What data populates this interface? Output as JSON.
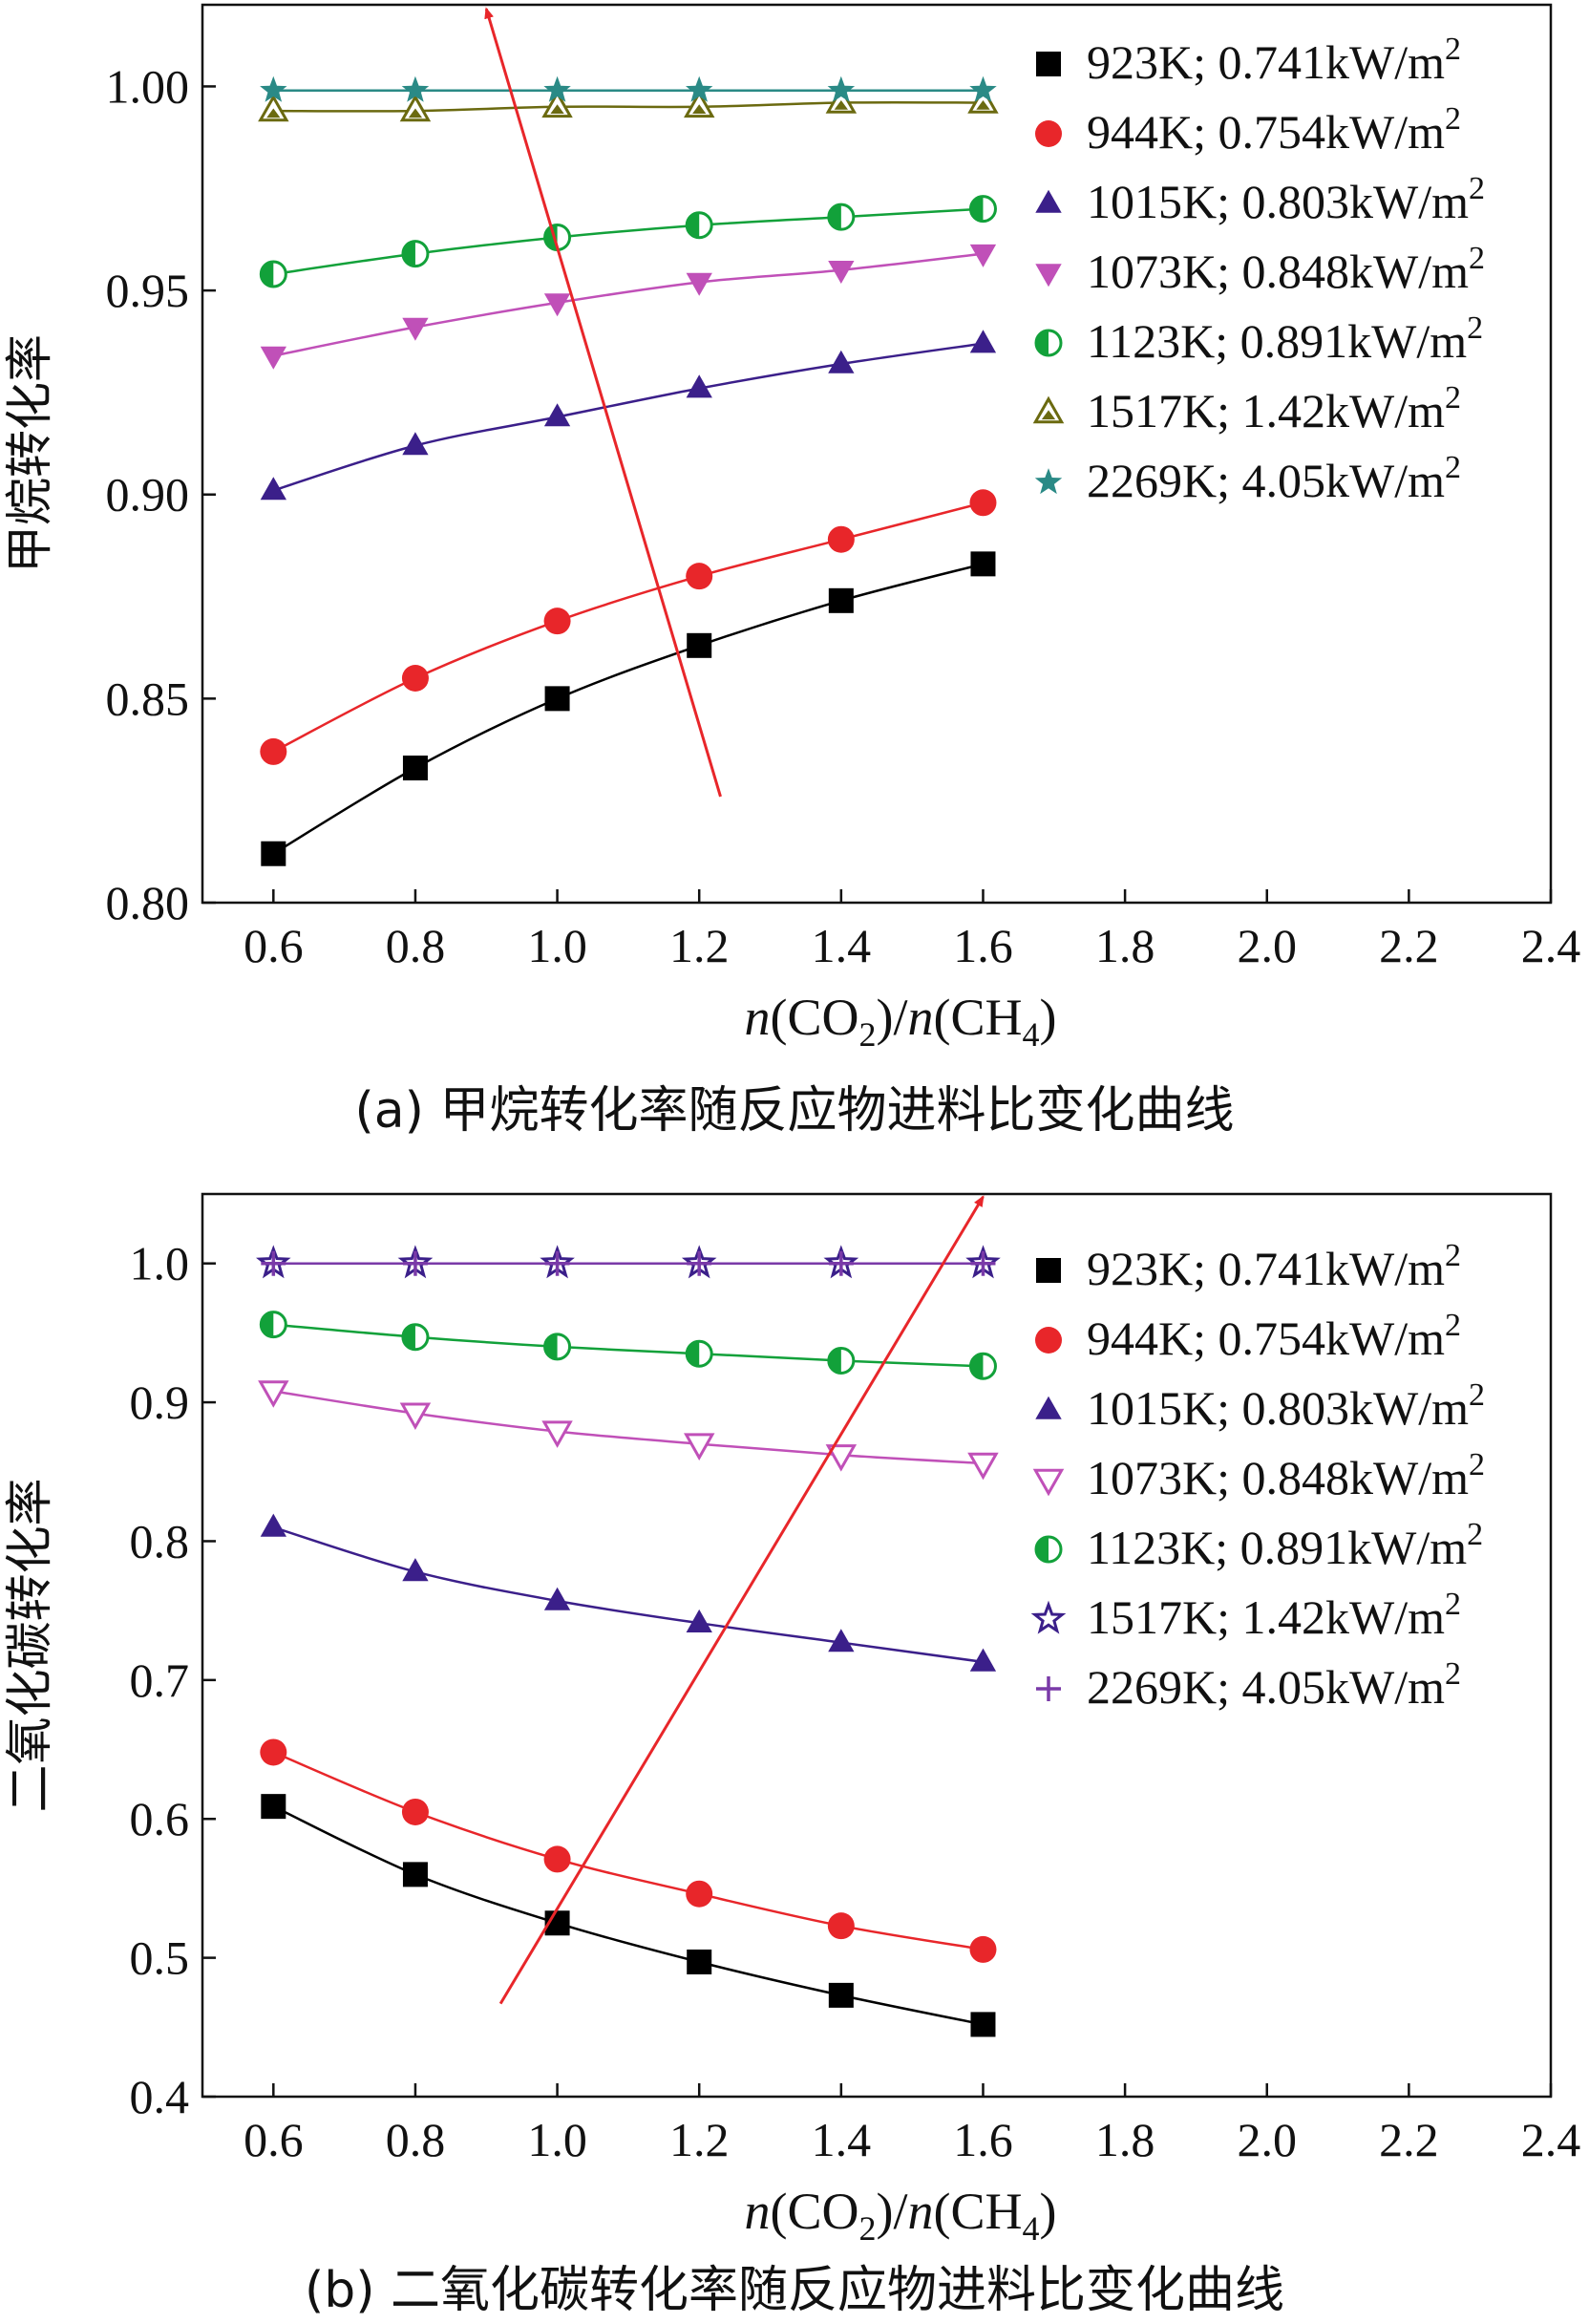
{
  "figure": {
    "caption_a": "(a) 甲烷转化率随反应物进料比变化曲线",
    "caption_b": "(b) 二氧化碳转化率随反应物进料比变化曲线"
  },
  "series_styles": [
    {
      "name": "923K; 0.741kW/m2",
      "label_main": "923K; 0.741kW/m",
      "label_sup": "2",
      "marker": "square",
      "color": "#000000",
      "line_color": "#000000"
    },
    {
      "name": "944K; 0.754kW/m2",
      "label_main": "944K; 0.754kW/m",
      "label_sup": "2",
      "marker": "circle",
      "color": "#e8262a",
      "line_color": "#e8262a"
    },
    {
      "name": "1015K; 0.803kW/m2",
      "label_main": "1015K; 0.803kW/m",
      "label_sup": "2",
      "marker": "triangle-up",
      "color": "#3b1f8a",
      "line_color": "#3b1f8a"
    },
    {
      "name": "1073K; 0.848kW/m2",
      "label_main": "1073K; 0.848kW/m",
      "label_sup": "2",
      "marker": "triangle-down",
      "color": "#c050b8",
      "line_color": "#c050b8"
    },
    {
      "name": "1123K; 0.891kW/m2",
      "label_main": "1123K; 0.891kW/m",
      "label_sup": "2",
      "marker": "half-circle",
      "color": "#12a13a",
      "line_color": "#12a13a"
    },
    {
      "name": "1517K; 1.42kW/m2",
      "label_main": "1517K; 1.42kW/m",
      "label_sup": "2",
      "marker": "half-triangle",
      "color": "#6b6a10",
      "line_color": "#6b6a10"
    },
    {
      "name": "2269K; 4.05kW/m2",
      "label_main": "2269K; 4.05kW/m",
      "label_sup": "2",
      "marker": "star",
      "color": "#2a8a86",
      "line_color": "#2a8a86"
    }
  ],
  "chart_data": [
    {
      "type": "line",
      "title": "",
      "xlabel": "n(CO2)/n(CH4)",
      "ylabel": "甲烷转化率",
      "xlim": [
        0.5,
        2.4
      ],
      "ylim": [
        0.8,
        1.02
      ],
      "xticks": [
        "0.6",
        "0.8",
        "1.0",
        "1.2",
        "1.4",
        "1.6",
        "1.8",
        "2.0",
        "2.2",
        "2.4"
      ],
      "yticks": [
        "0.80",
        "0.85",
        "0.90",
        "0.95",
        "1.00"
      ],
      "x": [
        0.6,
        0.8,
        1.0,
        1.2,
        1.4,
        1.6
      ],
      "legend_position": "top-right",
      "series": [
        {
          "name": "923K; 0.741kW/m2",
          "values": [
            0.812,
            0.833,
            0.85,
            0.863,
            0.874,
            0.883
          ]
        },
        {
          "name": "944K; 0.754kW/m2",
          "values": [
            0.837,
            0.855,
            0.869,
            0.88,
            0.889,
            0.898
          ]
        },
        {
          "name": "1015K; 0.803kW/m2",
          "values": [
            0.901,
            0.912,
            0.919,
            0.926,
            0.932,
            0.937
          ]
        },
        {
          "name": "1073K; 0.848kW/m2",
          "values": [
            0.934,
            0.941,
            0.947,
            0.952,
            0.955,
            0.959
          ]
        },
        {
          "name": "1123K; 0.891kW/m2",
          "values": [
            0.954,
            0.959,
            0.963,
            0.966,
            0.968,
            0.97
          ]
        },
        {
          "name": "1517K; 1.42kW/m2",
          "values": [
            0.994,
            0.994,
            0.995,
            0.995,
            0.996,
            0.996
          ]
        },
        {
          "name": "2269K; 4.05kW/m2",
          "values": [
            0.999,
            0.999,
            0.999,
            0.999,
            0.999,
            0.999
          ]
        }
      ],
      "annotations": [
        {
          "type": "arrow",
          "from": [
            1.23,
            0.826
          ],
          "to": [
            0.9,
            1.019
          ],
          "color": "#e8262a"
        }
      ]
    },
    {
      "type": "line",
      "title": "",
      "xlabel": "n(CO2)/n(CH4)",
      "ylabel": "二氧化碳转化率",
      "xlim": [
        0.5,
        2.4
      ],
      "ylim": [
        0.4,
        1.05
      ],
      "xticks": [
        "0.6",
        "0.8",
        "1.0",
        "1.2",
        "1.4",
        "1.6",
        "1.8",
        "2.0",
        "2.2",
        "2.4"
      ],
      "yticks": [
        "0.4",
        "0.5",
        "0.6",
        "0.7",
        "0.8",
        "0.9",
        "1.0"
      ],
      "x": [
        0.6,
        0.8,
        1.0,
        1.2,
        1.4,
        1.6
      ],
      "legend_position": "top-right",
      "series": [
        {
          "name": "923K; 0.741kW/m2",
          "values": [
            0.609,
            0.56,
            0.525,
            0.497,
            0.473,
            0.452
          ]
        },
        {
          "name": "944K; 0.754kW/m2",
          "values": [
            0.648,
            0.605,
            0.571,
            0.546,
            0.523,
            0.506
          ]
        },
        {
          "name": "1015K; 0.803kW/m2",
          "values": [
            0.81,
            0.778,
            0.757,
            0.741,
            0.727,
            0.713
          ]
        },
        {
          "name": "1073K; 0.848kW/m2",
          "values": [
            0.908,
            0.892,
            0.879,
            0.87,
            0.862,
            0.856
          ]
        },
        {
          "name": "1123K; 0.891kW/m2",
          "values": [
            0.956,
            0.947,
            0.94,
            0.935,
            0.93,
            0.926
          ]
        },
        {
          "name": "1517K; 1.42kW/m2",
          "values": [
            1.0,
            1.0,
            1.0,
            1.0,
            1.0,
            1.0
          ]
        },
        {
          "name": "2269K; 4.05kW/m2",
          "values": [
            1.0,
            1.0,
            1.0,
            1.0,
            1.0,
            1.0
          ]
        }
      ],
      "markers_override": {
        "1073K; 0.848kW/m2": "triangle-down-open",
        "1517K; 1.42kW/m2": "star-open",
        "2269K; 4.05kW/m2": "plus"
      },
      "colors_override": {
        "1517K; 1.42kW/m2": "#3b1f8a",
        "2269K; 4.05kW/m2": "#7a3aa8"
      },
      "annotations": [
        {
          "type": "arrow",
          "from": [
            0.92,
            0.467
          ],
          "to": [
            1.6,
            1.048
          ],
          "color": "#e8262a"
        }
      ]
    }
  ]
}
